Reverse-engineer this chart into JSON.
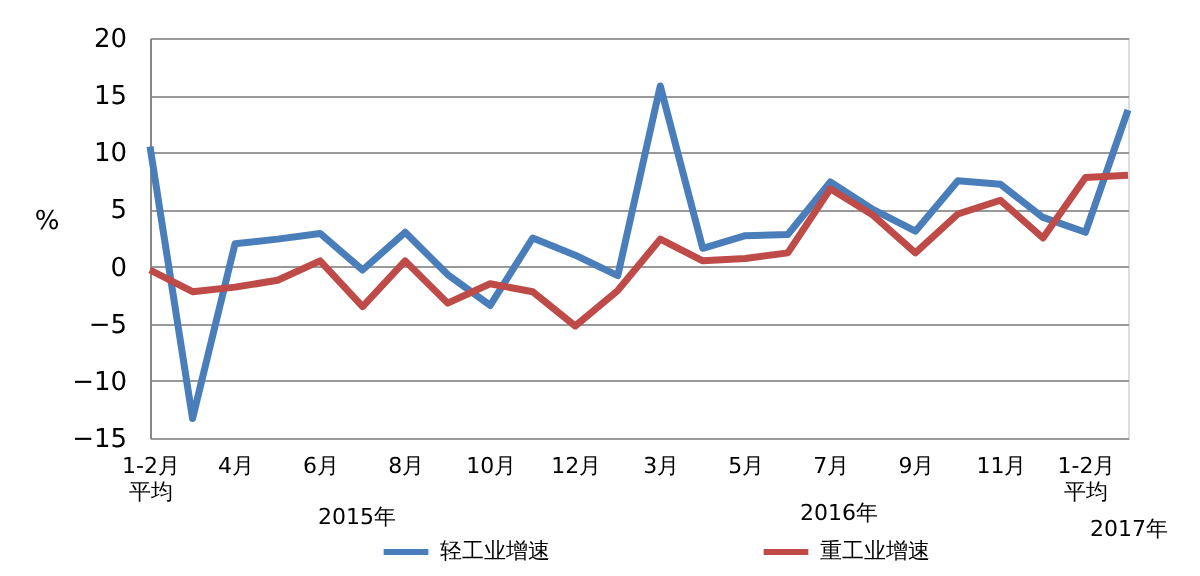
{
  "chart_data": {
    "type": "line",
    "categories": [
      "1-2月平均",
      null,
      "4月",
      null,
      "6月",
      null,
      "8月",
      null,
      "10月",
      null,
      "12月",
      null,
      "3月",
      null,
      "5月",
      null,
      "7月",
      null,
      "9月",
      null,
      "11月",
      null,
      "1-2月平均",
      null
    ],
    "series": [
      {
        "name": "轻工业增速",
        "color": "#4a7ebb",
        "values": [
          10.5,
          -13.3,
          2.0,
          2.4,
          2.9,
          -0.3,
          3.0,
          -0.7,
          -3.4,
          2.5,
          1.0,
          -0.8,
          15.8,
          1.6,
          2.7,
          2.8,
          7.4,
          5.0,
          3.1,
          7.5,
          7.2,
          4.3,
          3.0,
          13.7
        ]
      },
      {
        "name": "重工业增速",
        "color": "#be4b48",
        "values": [
          -0.3,
          -2.2,
          -1.8,
          -1.2,
          0.5,
          -3.5,
          0.5,
          -3.2,
          -1.5,
          -2.2,
          -5.2,
          -2.1,
          2.4,
          0.5,
          0.7,
          1.2,
          6.8,
          4.5,
          1.2,
          4.6,
          5.8,
          2.5,
          7.8,
          8.0
        ]
      }
    ],
    "ylabel": "%",
    "ylim": [
      -15,
      20
    ],
    "yticks": [
      -15,
      -10,
      -5,
      0,
      5,
      10,
      15,
      20
    ],
    "grid": "y",
    "legend": "bottom",
    "marker": "none",
    "line_style": "solid",
    "annotations": [
      "2015年",
      "2016年",
      "2017年"
    ]
  }
}
